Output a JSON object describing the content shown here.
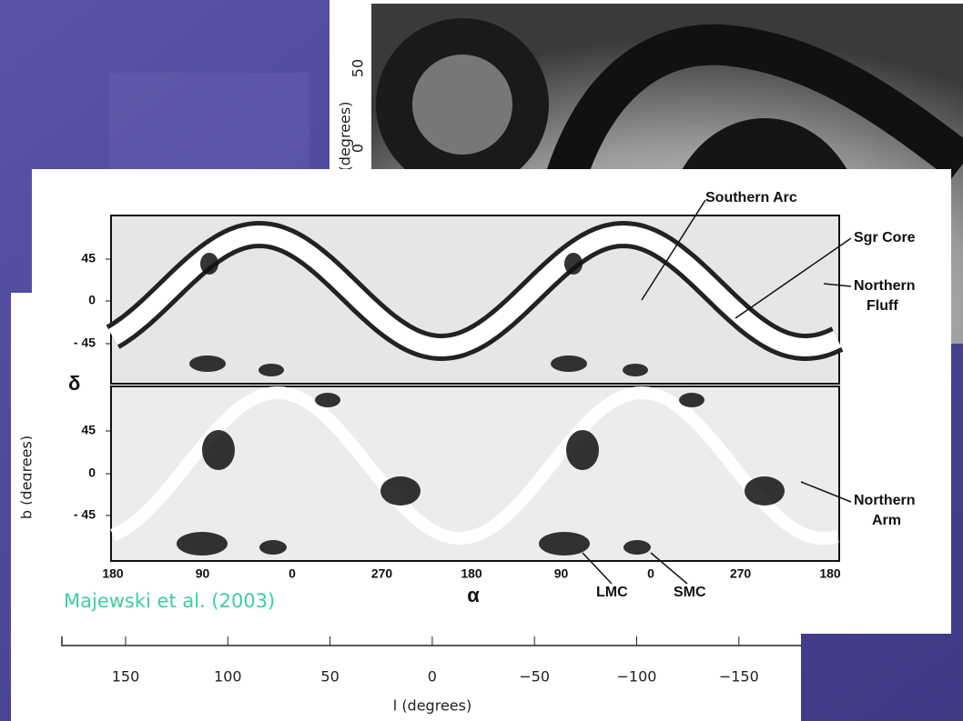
{
  "slide": {
    "top_figure": {
      "y_axis_label": "(degrees)",
      "y_ticks": [
        "50",
        "0"
      ]
    },
    "middle_figure": {
      "annotations": {
        "southern_arc": "Southern Arc",
        "sgr_core": "Sgr Core",
        "northern_fluff": [
          "Northern",
          "Fluff"
        ],
        "northern_arm": [
          "Northern",
          "Arm"
        ],
        "lmc": "LMC",
        "smc": "SMC"
      },
      "top_panel_y_ticks": [
        "45",
        "0",
        "- 45"
      ],
      "bottom_panel_y_ticks": [
        "45",
        "0",
        "- 45"
      ],
      "y_axis_label": "δ",
      "x_axis_label": "α",
      "x_ticks": [
        "180",
        "90",
        "0",
        "270",
        "180",
        "90",
        "0",
        "270",
        "180"
      ],
      "credit": "Majewski et al. (2003)"
    },
    "lower_figure": {
      "y_axis_label": "b (degrees)",
      "x_ticks": [
        "150",
        "100",
        "50",
        "0",
        "−50",
        "−100",
        "−150"
      ],
      "x_axis_label": "l (degrees)"
    }
  }
}
